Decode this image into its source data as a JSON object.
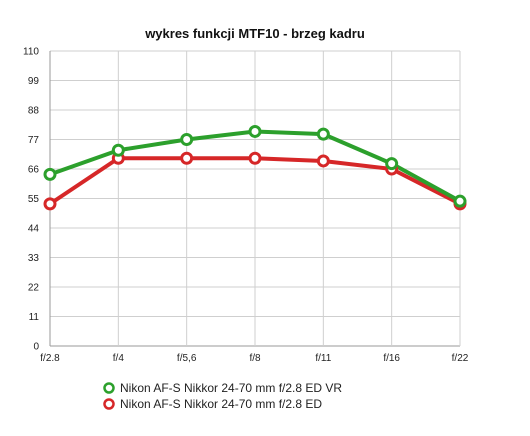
{
  "chart_data": {
    "type": "line",
    "title": "wykres funkcji MTF10 - brzeg kadru",
    "xlabel": "",
    "ylabel": "",
    "categories": [
      "f/2.8",
      "f/4",
      "f/5,6",
      "f/8",
      "f/11",
      "f/16",
      "f/22"
    ],
    "ylim": [
      0,
      110
    ],
    "yticks": [
      0,
      11,
      22,
      33,
      44,
      55,
      66,
      77,
      88,
      99,
      110
    ],
    "grid": true,
    "legend_position": "bottom",
    "series": [
      {
        "name": "Nikon AF-S Nikkor 24-70 mm f/2.8 ED VR",
        "color": "#2ca02c",
        "values": [
          64,
          73,
          77,
          80,
          79,
          68,
          54
        ]
      },
      {
        "name": "Nikon AF-S Nikkor 24-70 mm f/2.8 ED",
        "color": "#d62728",
        "values": [
          53,
          70,
          70,
          70,
          69,
          66,
          53
        ]
      }
    ]
  }
}
